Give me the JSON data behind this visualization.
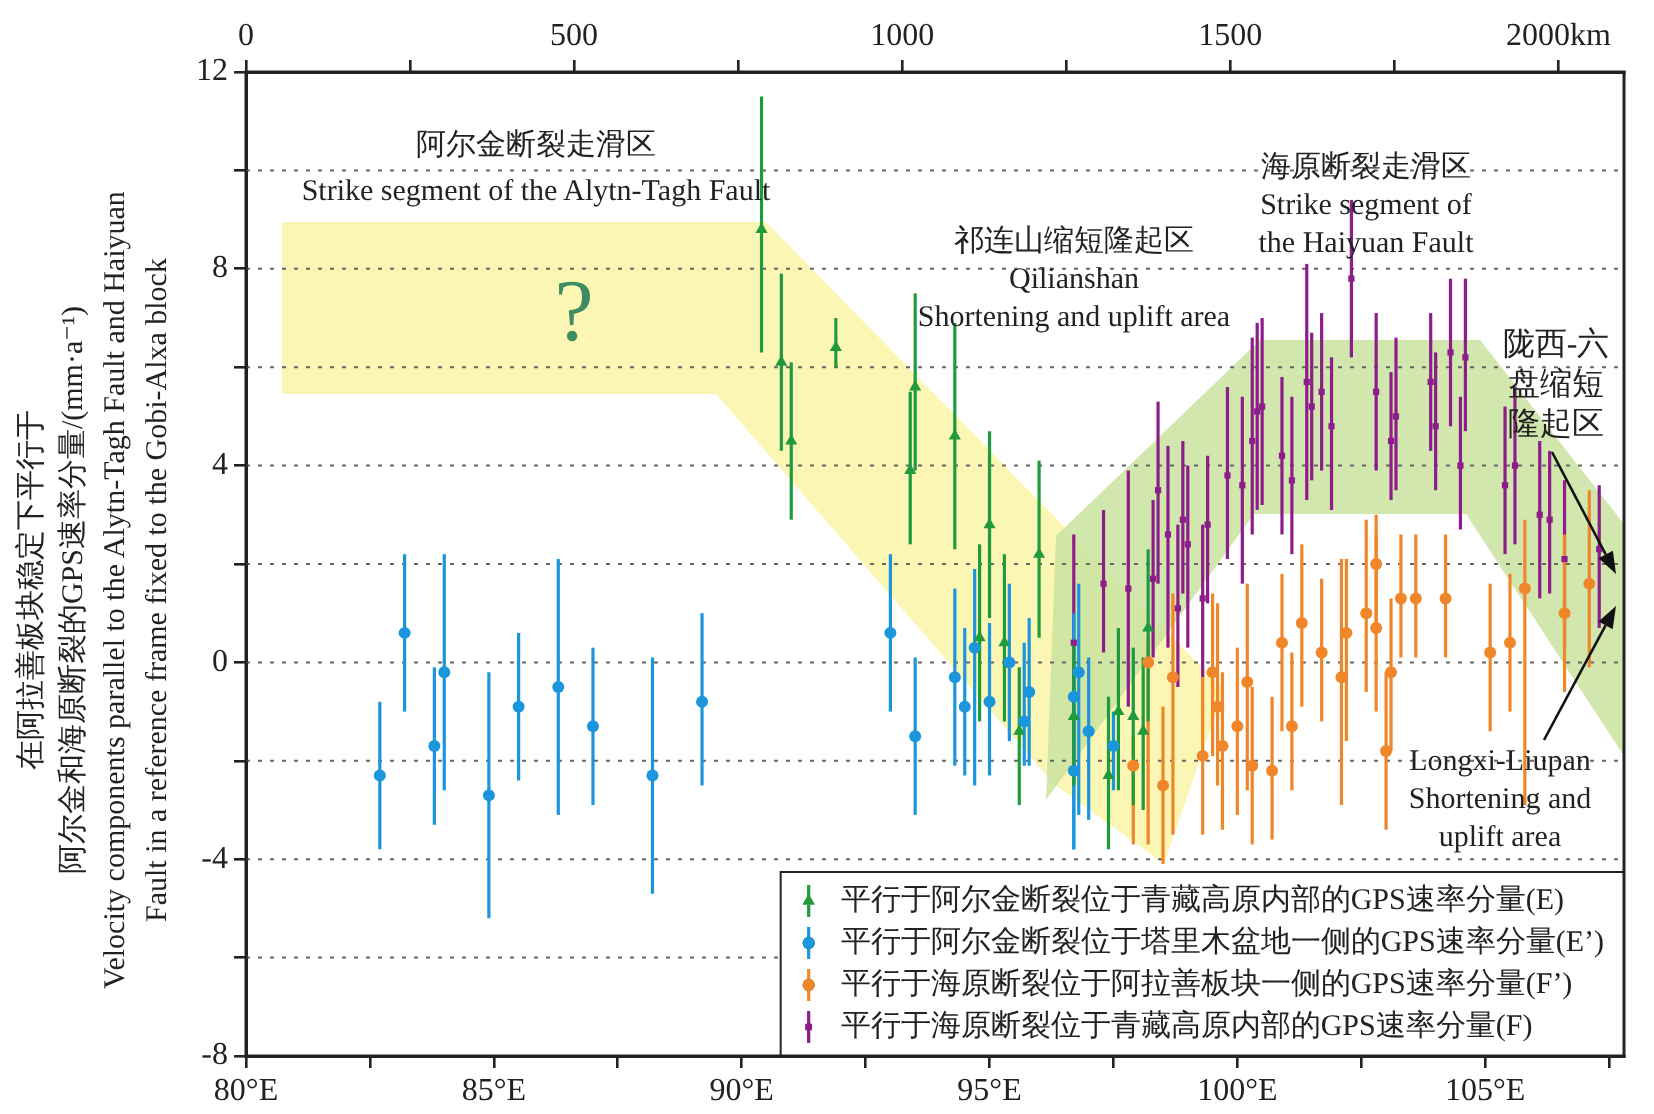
{
  "chart_data": {
    "type": "scatter",
    "ylabel": "在阿拉善板块稳定下平行于阿尔金和海原断裂的GPS速率分量/(mm·a⁻¹)\nVelocity components parallel to the Alytn-Tagh Fault and Haiyuan\nFault in a reference frame fixed to the Gobi-Alxa block",
    "xlim": [
      80,
      107.8
    ],
    "xticks": [
      {
        "value": 80,
        "label": "80°E"
      },
      {
        "value": 82.5,
        "label": null
      },
      {
        "value": 85,
        "label": "85°E"
      },
      {
        "value": 87.5,
        "label": null
      },
      {
        "value": 90,
        "label": "90°E"
      },
      {
        "value": 92.5,
        "label": null
      },
      {
        "value": 95,
        "label": "95°E"
      },
      {
        "value": 97.5,
        "label": null
      },
      {
        "value": 100,
        "label": "100°E"
      },
      {
        "value": 102.5,
        "label": null
      },
      {
        "value": 105,
        "label": "105°E"
      },
      {
        "value": 107.5,
        "label": null
      }
    ],
    "x2lim": [
      0,
      2100
    ],
    "x2ticks": [
      0,
      {
        "value": 250,
        "label": null
      },
      500,
      {
        "value": 750,
        "label": null
      },
      1000,
      {
        "value": 1250,
        "label": null
      },
      1500,
      {
        "value": 1750,
        "label": null
      },
      {
        "value": 2000,
        "label": "2000km"
      }
    ],
    "ylim": [
      -8,
      12
    ],
    "yticks": [
      -8,
      {
        "value": -6,
        "label": null
      },
      -4,
      {
        "value": -2,
        "label": null
      },
      0,
      {
        "value": 2,
        "label": null
      },
      4,
      {
        "value": 6,
        "label": null
      },
      8,
      {
        "value": 10,
        "label": null
      },
      12
    ],
    "grid": "y",
    "legend": "bottom right",
    "annotations": [
      "阿尔金断裂走滑区\nStrike segment of the Alytn-Tagh Fault",
      "?",
      "祁连山缩短隆起区\nQilianshan\nShortening and uplift area",
      "海原断裂走滑区\nStrike segment of\nthe Haiyuan Fault",
      "陇西-六盘缩短隆起区",
      "Longxi-Liupan\nShortening and\nuplift area"
    ],
    "series": [
      {
        "name": "平行于阿尔金断裂位于青藏高原内部的GPS速率分量(E)",
        "color": "#1f9a3c",
        "marker": "triangle",
        "x": [
          90.4,
          90.8,
          91.0,
          91.9,
          93.4,
          93.5,
          94.3,
          94.8,
          95.0,
          95.3,
          95.6,
          96.0,
          96.7,
          97.4,
          97.6,
          97.9,
          98.1,
          98.2
        ],
        "values": [
          8.8,
          6.1,
          4.5,
          6.4,
          3.9,
          5.6,
          4.6,
          0.5,
          2.8,
          0.4,
          -1.4,
          2.2,
          -1.1,
          -2.3,
          -1.0,
          -1.1,
          -1.4,
          0.7
        ],
        "errors": [
          [
            6.3,
            11.5
          ],
          [
            4.3,
            7.9
          ],
          [
            2.9,
            6.1
          ],
          [
            6.0,
            7.0
          ],
          [
            2.4,
            5.5
          ],
          [
            3.9,
            7.5
          ],
          [
            2.3,
            6.9
          ],
          [
            -1.2,
            2.4
          ],
          [
            0.9,
            4.7
          ],
          [
            -1.2,
            2.2
          ],
          [
            -2.9,
            -0.1
          ],
          [
            0.5,
            4.1
          ],
          [
            -2.5,
            0.4
          ],
          [
            -3.8,
            -0.7
          ],
          [
            -2.6,
            0.7
          ],
          [
            -2.9,
            0.3
          ],
          [
            -3.0,
            0.1
          ],
          [
            -1.2,
            2.3
          ]
        ]
      },
      {
        "name": "平行于阿尔金断裂位于塔里木盆地一侧的GPS速率分量(E’)",
        "color": "#1b95dc",
        "marker": "circle",
        "x": [
          82.7,
          83.2,
          83.8,
          84.0,
          84.9,
          85.5,
          86.3,
          87.0,
          88.2,
          89.2,
          93.0,
          93.5,
          94.3,
          94.5,
          94.7,
          95.0,
          95.4,
          95.7,
          95.8,
          96.7,
          96.7,
          96.8,
          97.0,
          97.5
        ],
        "values": [
          -2.3,
          0.6,
          -1.7,
          -0.2,
          -2.7,
          -0.9,
          -0.5,
          -1.3,
          -2.3,
          -0.8,
          0.6,
          -1.5,
          -0.3,
          -0.9,
          0.3,
          -0.8,
          0.0,
          -1.2,
          -0.6,
          -0.7,
          -2.2,
          -0.2,
          -1.4,
          -1.7
        ],
        "errors": [
          [
            -3.8,
            -0.8
          ],
          [
            -1.0,
            2.2
          ],
          [
            -3.3,
            -0.1
          ],
          [
            -2.6,
            2.2
          ],
          [
            -5.2,
            -0.2
          ],
          [
            -2.4,
            0.6
          ],
          [
            -3.1,
            2.1
          ],
          [
            -2.9,
            0.3
          ],
          [
            -4.7,
            0.1
          ],
          [
            -2.5,
            1.0
          ],
          [
            -1.0,
            2.2
          ],
          [
            -3.1,
            0.1
          ],
          [
            -2.1,
            1.5
          ],
          [
            -2.3,
            0.7
          ],
          [
            -2.5,
            1.9
          ],
          [
            -2.3,
            0.8
          ],
          [
            -1.6,
            1.6
          ],
          [
            -2.1,
            0.4
          ],
          [
            -2.1,
            0.9
          ],
          [
            -3.8,
            1.0
          ],
          [
            -3.8,
            -0.7
          ],
          [
            -3.1,
            1.6
          ],
          [
            -3.2,
            0.1
          ],
          [
            -2.6,
            -1.0
          ]
        ]
      },
      {
        "name": "平行于海原断裂位于阿拉善板块一侧的GPS速率分量(F’)",
        "color": "#f0862a",
        "marker": "circle",
        "x": [
          97.9,
          98.2,
          98.5,
          98.7,
          99.3,
          99.5,
          99.6,
          99.7,
          100.0,
          100.2,
          100.3,
          100.7,
          100.9,
          101.1,
          101.3,
          101.7,
          102.1,
          102.2,
          102.6,
          102.8,
          102.8,
          103.0,
          103.1,
          103.3,
          103.6,
          104.2,
          105.1,
          105.5,
          105.8,
          106.6,
          107.1
        ],
        "values": [
          -2.1,
          0.0,
          -2.5,
          -0.3,
          -1.9,
          -0.2,
          -0.9,
          -1.7,
          -1.3,
          -0.4,
          -2.1,
          -2.2,
          0.4,
          -1.3,
          0.8,
          0.2,
          -0.3,
          0.6,
          1.0,
          2.0,
          0.7,
          -1.8,
          -0.2,
          1.3,
          1.3,
          1.3,
          0.2,
          0.4,
          1.5,
          1.0,
          1.6
        ],
        "errors": [
          [
            -3.7,
            -1.5
          ],
          [
            -3.7,
            0.5
          ],
          [
            -4.1,
            -0.9
          ],
          [
            -3.5,
            1.4
          ],
          [
            -3.5,
            -0.3
          ],
          [
            -1.9,
            1.4
          ],
          [
            -2.5,
            1.2
          ],
          [
            -3.4,
            -0.2
          ],
          [
            -3.1,
            0.3
          ],
          [
            -2.6,
            1.6
          ],
          [
            -3.7,
            -0.5
          ],
          [
            -3.6,
            -0.7
          ],
          [
            -1.4,
            1.8
          ],
          [
            -2.6,
            0.2
          ],
          [
            -0.9,
            2.4
          ],
          [
            -1.2,
            1.7
          ],
          [
            -2.9,
            2.1
          ],
          [
            -1.6,
            2.1
          ],
          [
            -0.6,
            2.9
          ],
          [
            0.8,
            3.0
          ],
          [
            -1.0,
            2.6
          ],
          [
            -3.4,
            -0.2
          ],
          [
            -1.8,
            1.3
          ],
          [
            0.1,
            2.6
          ],
          [
            0.1,
            2.6
          ],
          [
            0.1,
            2.6
          ],
          [
            -1.4,
            1.6
          ],
          [
            -1.0,
            1.8
          ],
          [
            -2.9,
            2.9
          ],
          [
            -0.6,
            2.6
          ],
          [
            -0.1,
            3.5
          ]
        ]
      },
      {
        "name": "平行于海原断裂位于青藏高原内部的GPS速率分量(F)",
        "color": "#8c1d8a",
        "marker": "square",
        "x": [
          96.7,
          97.3,
          97.8,
          98.3,
          98.4,
          98.6,
          98.8,
          98.9,
          99.0,
          99.3,
          99.4,
          99.8,
          100.1,
          100.3,
          100.4,
          100.5,
          100.9,
          101.1,
          101.4,
          101.5,
          101.7,
          101.9,
          102.3,
          102.8,
          103.1,
          103.2,
          103.9,
          104.0,
          104.3,
          104.5,
          104.6,
          105.4,
          105.6,
          106.1,
          106.3,
          106.6,
          107.3
        ],
        "values": [
          0.4,
          1.6,
          1.5,
          1.7,
          3.5,
          2.6,
          1.1,
          2.9,
          2.4,
          1.3,
          2.8,
          3.8,
          3.6,
          4.5,
          5.1,
          5.2,
          4.2,
          3.7,
          5.7,
          5.2,
          5.5,
          4.8,
          7.8,
          5.5,
          4.5,
          5.0,
          5.7,
          4.8,
          6.3,
          4.0,
          6.2,
          3.6,
          4.0,
          3.0,
          2.9,
          2.1,
          2.3
        ],
        "errors": [
          [
            -2.4,
            2.6
          ],
          [
            0.2,
            3.1
          ],
          [
            -0.9,
            3.9
          ],
          [
            0.1,
            3.3
          ],
          [
            1.6,
            5.3
          ],
          [
            0.3,
            4.4
          ],
          [
            -0.5,
            2.8
          ],
          [
            1.4,
            4.5
          ],
          [
            0.3,
            4.0
          ],
          [
            -0.3,
            2.8
          ],
          [
            1.2,
            4.2
          ],
          [
            2.1,
            5.6
          ],
          [
            1.6,
            5.4
          ],
          [
            2.6,
            6.6
          ],
          [
            3.1,
            6.9
          ],
          [
            3.2,
            7.0
          ],
          [
            2.6,
            5.8
          ],
          [
            2.2,
            5.4
          ],
          [
            3.3,
            8.1
          ],
          [
            3.7,
            6.7
          ],
          [
            3.9,
            7.1
          ],
          [
            3.1,
            6.2
          ],
          [
            6.2,
            9.4
          ],
          [
            3.9,
            7.1
          ],
          [
            3.3,
            5.9
          ],
          [
            3.5,
            6.6
          ],
          [
            4.3,
            7.1
          ],
          [
            3.5,
            6.3
          ],
          [
            4.8,
            7.8
          ],
          [
            2.7,
            5.4
          ],
          [
            4.7,
            7.8
          ],
          [
            2.2,
            5.2
          ],
          [
            2.4,
            5.6
          ],
          [
            1.3,
            4.5
          ],
          [
            1.4,
            4.3
          ],
          [
            0.3,
            3.7
          ],
          [
            0.7,
            3.6
          ]
        ]
      }
    ]
  }
}
